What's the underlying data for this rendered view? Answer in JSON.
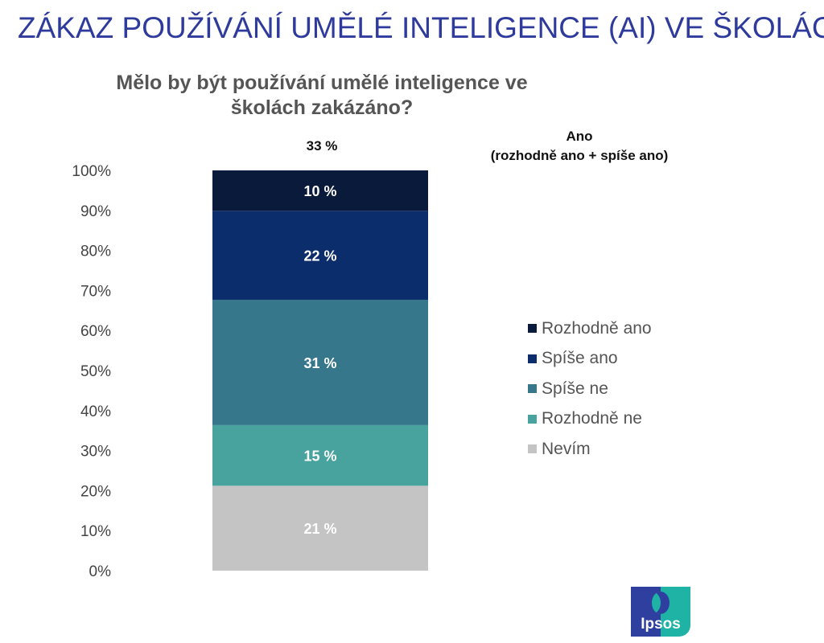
{
  "header": {
    "title": "ZÁKAZ POUŽÍVÁNÍ UMĚLÉ INTELIGENCE (AI) VE ŠKOLÁCH",
    "logo_text": "Ipsos"
  },
  "chart_data": {
    "type": "bar",
    "stacked": true,
    "title": "Mělo by být používání umělé inteligence ve školách zakázáno?",
    "annotation": {
      "label": "Ano",
      "sublabel": "(rozhodně ano + spíše ano)",
      "value": "33 %"
    },
    "categories": [
      ""
    ],
    "ylim": [
      0,
      100
    ],
    "yticks": [
      "0%",
      "10%",
      "20%",
      "30%",
      "40%",
      "50%",
      "60%",
      "70%",
      "80%",
      "90%",
      "100%"
    ],
    "series": [
      {
        "name": "Nevím",
        "values": [
          21
        ],
        "label": "21 %",
        "color": "#c4c4c4"
      },
      {
        "name": "Rozhodně ne",
        "values": [
          15
        ],
        "label": "15 %",
        "color": "#48a39e"
      },
      {
        "name": "Spíše ne",
        "values": [
          31
        ],
        "label": "31 %",
        "color": "#36778c"
      },
      {
        "name": "Spíše ano",
        "values": [
          22
        ],
        "label": "22 %",
        "color": "#0c2d6b"
      },
      {
        "name": "Rozhodně ano",
        "values": [
          10
        ],
        "label": "10 %",
        "color": "#0a1a3a"
      }
    ],
    "legend_order": [
      4,
      3,
      2,
      1,
      0
    ],
    "legend_position": "right"
  }
}
